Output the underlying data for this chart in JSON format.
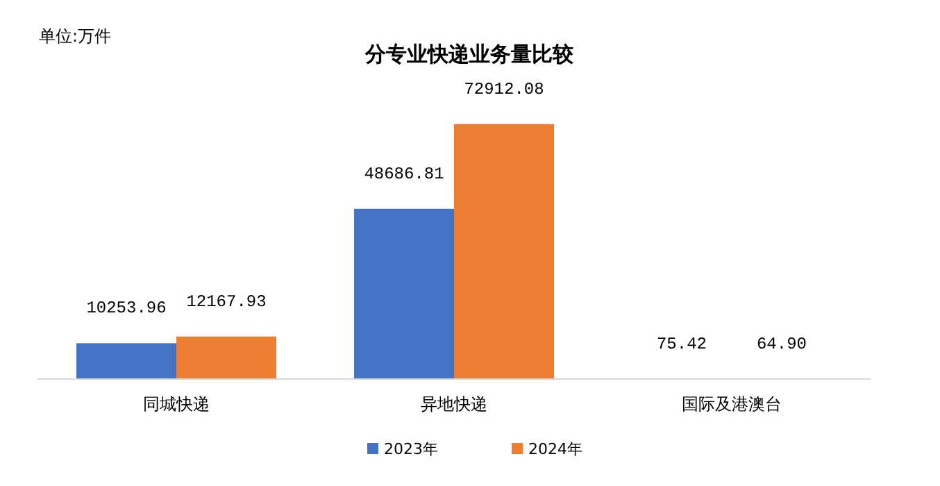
{
  "chart_data": {
    "type": "bar",
    "title": "分专业快递业务量比较",
    "annotations": [
      "单位:万件"
    ],
    "categories": [
      "同城快递",
      "异地快递",
      "国际及港澳台"
    ],
    "series": [
      {
        "name": "2023年",
        "color": "#4472c4",
        "values": [
          10253.96,
          48686.81,
          75.42
        ],
        "value_labels": [
          "10253.96",
          "48686.81",
          "75.42"
        ]
      },
      {
        "name": "2024年",
        "color": "#ed7d31",
        "values": [
          12167.93,
          72912.08,
          64.9
        ],
        "value_labels": [
          "12167.93",
          "72912.08",
          "64.90"
        ]
      }
    ],
    "legend": "bottom"
  }
}
